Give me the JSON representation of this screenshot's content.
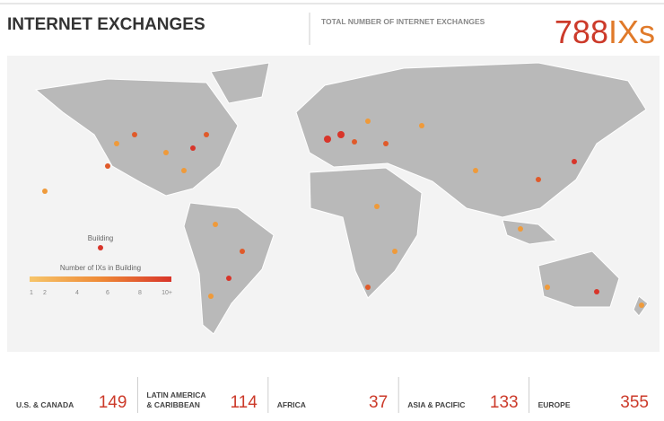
{
  "header": {
    "title": "INTERNET EXCHANGES",
    "total_label": "TOTAL NUMBER OF INTERNET EXCHANGES",
    "total_value": 788,
    "total_unit": "IXs"
  },
  "legend": {
    "building_label": "Building",
    "scale_title": "Number of IXs in Building",
    "scale_labels": [
      "1",
      "2",
      "4",
      "6",
      "8",
      "10+"
    ]
  },
  "regions": [
    {
      "lines": [
        "U.S. & CANADA"
      ],
      "count": 149
    },
    {
      "lines": [
        "LATIN AMERICA",
        "& CARIBBEAN"
      ],
      "count": 114
    },
    {
      "lines": [
        "AFRICA"
      ],
      "count": 37
    },
    {
      "lines": [
        "ASIA & PACIFIC"
      ],
      "count": 133
    },
    {
      "lines": [
        "EUROPE"
      ],
      "count": 355
    }
  ]
}
